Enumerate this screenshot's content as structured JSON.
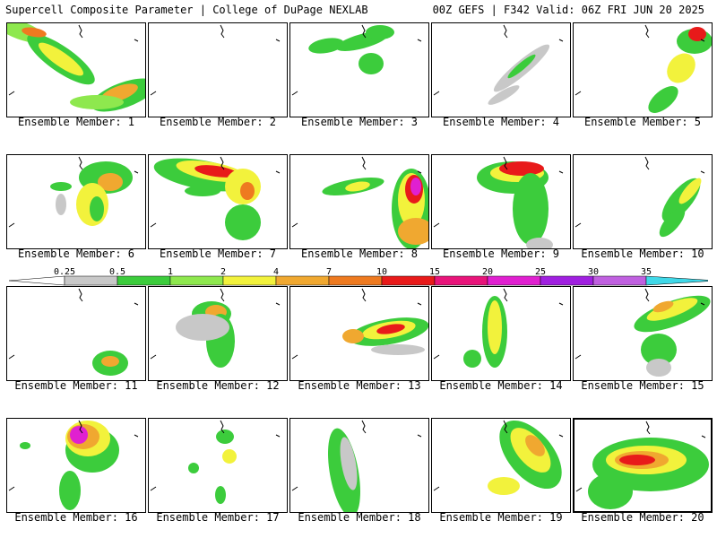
{
  "header": {
    "title": "Supercell Composite Parameter | College of DuPage NEXLAB",
    "run_info": "00Z GEFS | F342 Valid: 06Z FRI JUN 20 2025"
  },
  "colorbar": {
    "labels": [
      "0.25",
      "0.5",
      "1",
      "2",
      "4",
      "7",
      "10",
      "15",
      "20",
      "25",
      "30",
      "35"
    ],
    "colors": [
      "#c8c8c8",
      "#3ccc3c",
      "#8ee84e",
      "#f2f23c",
      "#f0a830",
      "#ee7a20",
      "#e81a1a",
      "#e8147a",
      "#e020d0",
      "#a020e0",
      "#c060e0",
      "#40d8e8"
    ]
  },
  "members": [
    {
      "label": "Ensemble Member: 1"
    },
    {
      "label": "Ensemble Member: 2"
    },
    {
      "label": "Ensemble Member: 3"
    },
    {
      "label": "Ensemble Member: 4"
    },
    {
      "label": "Ensemble Member: 5"
    },
    {
      "label": "Ensemble Member: 6"
    },
    {
      "label": "Ensemble Member: 7"
    },
    {
      "label": "Ensemble Member: 8"
    },
    {
      "label": "Ensemble Member: 9"
    },
    {
      "label": "Ensemble Member: 10"
    },
    {
      "label": "Ensemble Member: 11"
    },
    {
      "label": "Ensemble Member: 12"
    },
    {
      "label": "Ensemble Member: 13"
    },
    {
      "label": "Ensemble Member: 14"
    },
    {
      "label": "Ensemble Member: 15"
    },
    {
      "label": "Ensemble Member: 16"
    },
    {
      "label": "Ensemble Member: 17"
    },
    {
      "label": "Ensemble Member: 18"
    },
    {
      "label": "Ensemble Member: 19"
    },
    {
      "label": "Ensemble Member: 20"
    }
  ]
}
